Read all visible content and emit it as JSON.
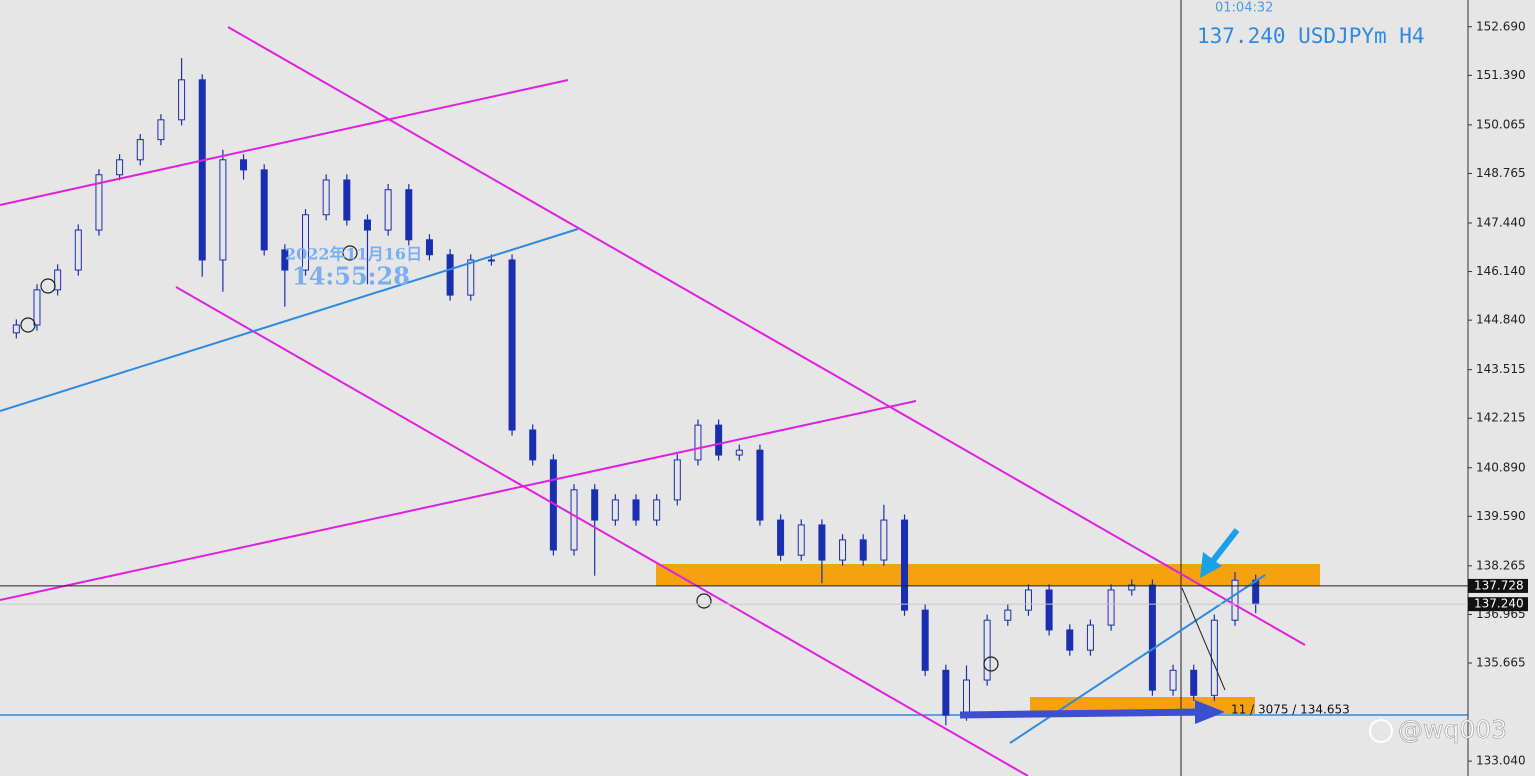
{
  "chart_data": {
    "type": "candlestick",
    "timer": "01:04:32",
    "header": "137.240 USDJPYm H4",
    "date_overlay": "2022年11月16日",
    "time_overlay": "14:55:28",
    "measure_label": "11 / 3075 / 134.653",
    "watermark": "@wq003",
    "up_color": "#e6e6e6",
    "down_color": "#1a2fb0",
    "wick_color": "#1a2fb0",
    "ylim": [
      132.642,
      153.406
    ],
    "yticks": [
      {
        "value": 152.69,
        "label": "152.690"
      },
      {
        "value": 151.39,
        "label": "151.390"
      },
      150.065,
      148.765,
      {
        "value": 147.44,
        "label": "147.440"
      },
      {
        "value": 146.14,
        "label": "146.140"
      },
      {
        "value": 144.84,
        "label": "144.840"
      },
      143.515,
      142.215,
      {
        "value": 140.89,
        "label": "140.890"
      },
      {
        "value": 139.59,
        "label": "139.590"
      },
      138.265,
      136.965,
      135.665,
      {
        "value": 133.04,
        "label": "133.040"
      }
    ],
    "price_lines": [
      {
        "value": 137.728,
        "label": "137.728"
      },
      {
        "value": 137.24,
        "label": "137.240"
      }
    ],
    "candles": [
      [
        144.5,
        144.86,
        144.35,
        144.71
      ],
      [
        144.71,
        145.8,
        144.56,
        145.65
      ],
      [
        145.65,
        146.33,
        145.5,
        146.18
      ],
      [
        146.18,
        147.4,
        146.03,
        147.25
      ],
      [
        147.25,
        148.88,
        147.1,
        148.73
      ],
      [
        148.73,
        149.28,
        148.58,
        149.13
      ],
      [
        149.13,
        149.82,
        148.98,
        149.67
      ],
      [
        149.67,
        150.35,
        149.52,
        150.2
      ],
      [
        150.2,
        151.85,
        150.05,
        151.27
      ],
      [
        151.27,
        151.42,
        146.0,
        146.45
      ],
      [
        146.45,
        149.4,
        145.6,
        149.13
      ],
      [
        149.13,
        149.28,
        148.6,
        148.86
      ],
      [
        148.86,
        149.01,
        146.57,
        146.72
      ],
      [
        146.72,
        146.87,
        145.2,
        146.18
      ],
      [
        146.18,
        147.81,
        146.03,
        147.66
      ],
      [
        147.66,
        148.74,
        147.51,
        148.59
      ],
      [
        148.59,
        148.74,
        147.37,
        147.52
      ],
      [
        147.52,
        147.67,
        145.8,
        147.25
      ],
      [
        147.25,
        148.48,
        147.1,
        148.33
      ],
      [
        148.33,
        148.48,
        146.84,
        146.99
      ],
      [
        146.99,
        147.14,
        146.44,
        146.59
      ],
      [
        146.59,
        146.74,
        145.36,
        145.51
      ],
      [
        145.51,
        146.6,
        145.36,
        146.45
      ],
      [
        146.45,
        146.6,
        146.3,
        146.45
      ],
      [
        146.45,
        146.6,
        141.75,
        141.9
      ],
      [
        141.9,
        142.05,
        140.95,
        141.1
      ],
      [
        141.1,
        141.25,
        138.54,
        138.69
      ],
      [
        138.69,
        140.45,
        138.54,
        140.3
      ],
      [
        140.3,
        140.45,
        138.0,
        139.49
      ],
      [
        139.49,
        140.18,
        139.34,
        140.03
      ],
      [
        140.03,
        140.18,
        139.34,
        139.49
      ],
      [
        139.49,
        140.18,
        139.34,
        140.03
      ],
      [
        140.03,
        141.25,
        139.88,
        141.1
      ],
      [
        141.1,
        142.18,
        140.95,
        142.03
      ],
      [
        142.03,
        142.18,
        141.08,
        141.23
      ],
      [
        141.23,
        141.51,
        141.08,
        141.36
      ],
      [
        141.36,
        141.51,
        139.34,
        139.49
      ],
      [
        139.49,
        139.64,
        138.4,
        138.55
      ],
      [
        138.55,
        139.51,
        138.4,
        139.36
      ],
      [
        139.36,
        139.51,
        137.8,
        138.42
      ],
      [
        138.42,
        139.11,
        138.27,
        138.96
      ],
      [
        138.96,
        139.11,
        138.27,
        138.42
      ],
      [
        138.42,
        139.9,
        138.27,
        139.49
      ],
      [
        139.49,
        139.64,
        136.93,
        137.08
      ],
      [
        137.08,
        137.23,
        135.32,
        135.47
      ],
      [
        135.47,
        135.62,
        134.0,
        134.27
      ],
      [
        134.27,
        135.6,
        134.12,
        135.21
      ],
      [
        135.21,
        136.96,
        135.06,
        136.81
      ],
      [
        136.81,
        137.23,
        136.66,
        137.08
      ],
      [
        137.08,
        137.77,
        136.93,
        137.62
      ],
      [
        137.62,
        137.77,
        136.4,
        136.55
      ],
      [
        136.55,
        136.7,
        135.86,
        136.01
      ],
      [
        136.01,
        136.83,
        135.86,
        136.68
      ],
      [
        136.68,
        137.77,
        136.53,
        137.62
      ],
      [
        137.62,
        137.9,
        137.47,
        137.75
      ],
      [
        137.75,
        137.9,
        134.79,
        134.94
      ],
      [
        134.94,
        135.62,
        134.79,
        135.47
      ],
      [
        135.47,
        135.62,
        134.65,
        134.8
      ],
      [
        134.8,
        136.96,
        134.65,
        136.81
      ],
      [
        136.81,
        138.1,
        136.66,
        137.88
      ],
      [
        137.88,
        138.03,
        137.0,
        137.24
      ]
    ]
  }
}
